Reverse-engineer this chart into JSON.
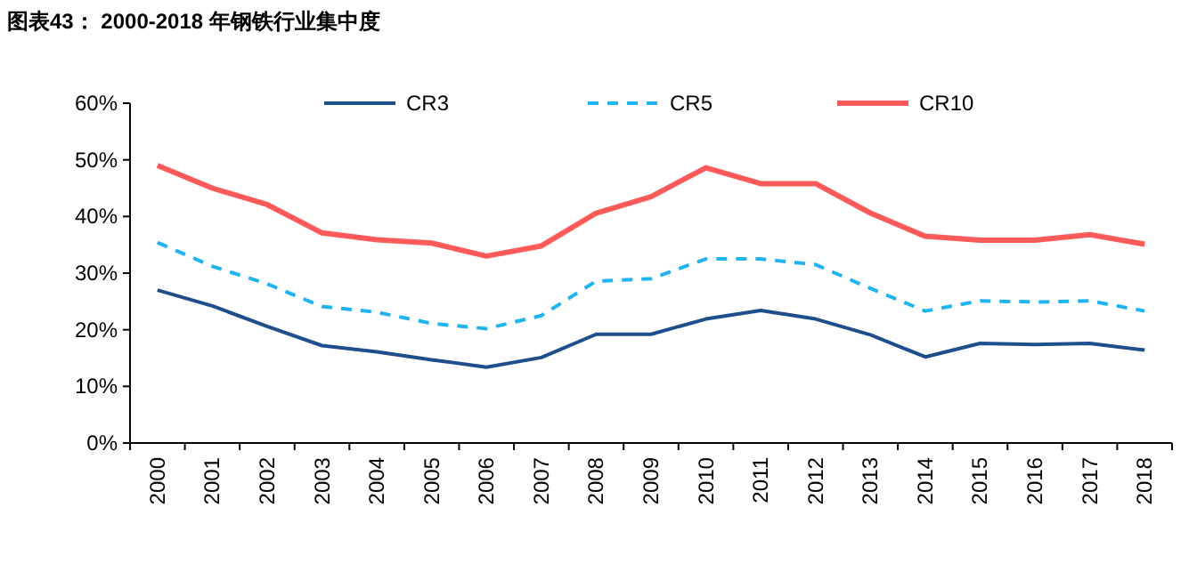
{
  "chart_data": {
    "type": "line",
    "title": "图表43：  2000-2018 年钢铁行业集中度",
    "categories": [
      "2000",
      "2001",
      "2002",
      "2003",
      "2004",
      "2005",
      "2006",
      "2007",
      "2008",
      "2009",
      "2010",
      "2011",
      "2012",
      "2013",
      "2014",
      "2015",
      "2016",
      "2017",
      "2018"
    ],
    "series": [
      {
        "name": "CR3",
        "color": "#1f4e8c",
        "line_style": "solid",
        "values": [
          27.0,
          24.2,
          20.6,
          17.2,
          16.1,
          14.7,
          13.4,
          15.1,
          19.2,
          19.2,
          21.9,
          23.4,
          21.9,
          19.1,
          15.2,
          17.6,
          17.4,
          17.6,
          16.4
        ]
      },
      {
        "name": "CR5",
        "color": "#1fb4f0",
        "line_style": "dashed",
        "values": [
          35.4,
          31.2,
          28.1,
          24.1,
          23.1,
          21.1,
          20.2,
          22.5,
          28.6,
          29.0,
          32.5,
          32.5,
          31.5,
          27.3,
          23.3,
          25.1,
          24.9,
          25.1,
          23.3
        ]
      },
      {
        "name": "CR10",
        "color": "#ff5a5a",
        "line_style": "solid",
        "values": [
          49.0,
          45.0,
          42.1,
          37.1,
          35.9,
          35.3,
          33.0,
          34.8,
          40.6,
          43.5,
          48.6,
          45.8,
          45.8,
          40.6,
          36.5,
          35.8,
          35.8,
          36.8,
          35.1
        ]
      }
    ],
    "ylim": [
      0,
      60
    ],
    "yticks": [
      {
        "value": 0,
        "label": "0%"
      },
      {
        "value": 10,
        "label": "10%"
      },
      {
        "value": 20,
        "label": "20%"
      },
      {
        "value": 30,
        "label": "30%"
      },
      {
        "value": 40,
        "label": "40%"
      },
      {
        "value": 50,
        "label": "50%"
      },
      {
        "value": 60,
        "label": "60%"
      }
    ],
    "grid": false,
    "legend": "top",
    "marker": "none"
  }
}
